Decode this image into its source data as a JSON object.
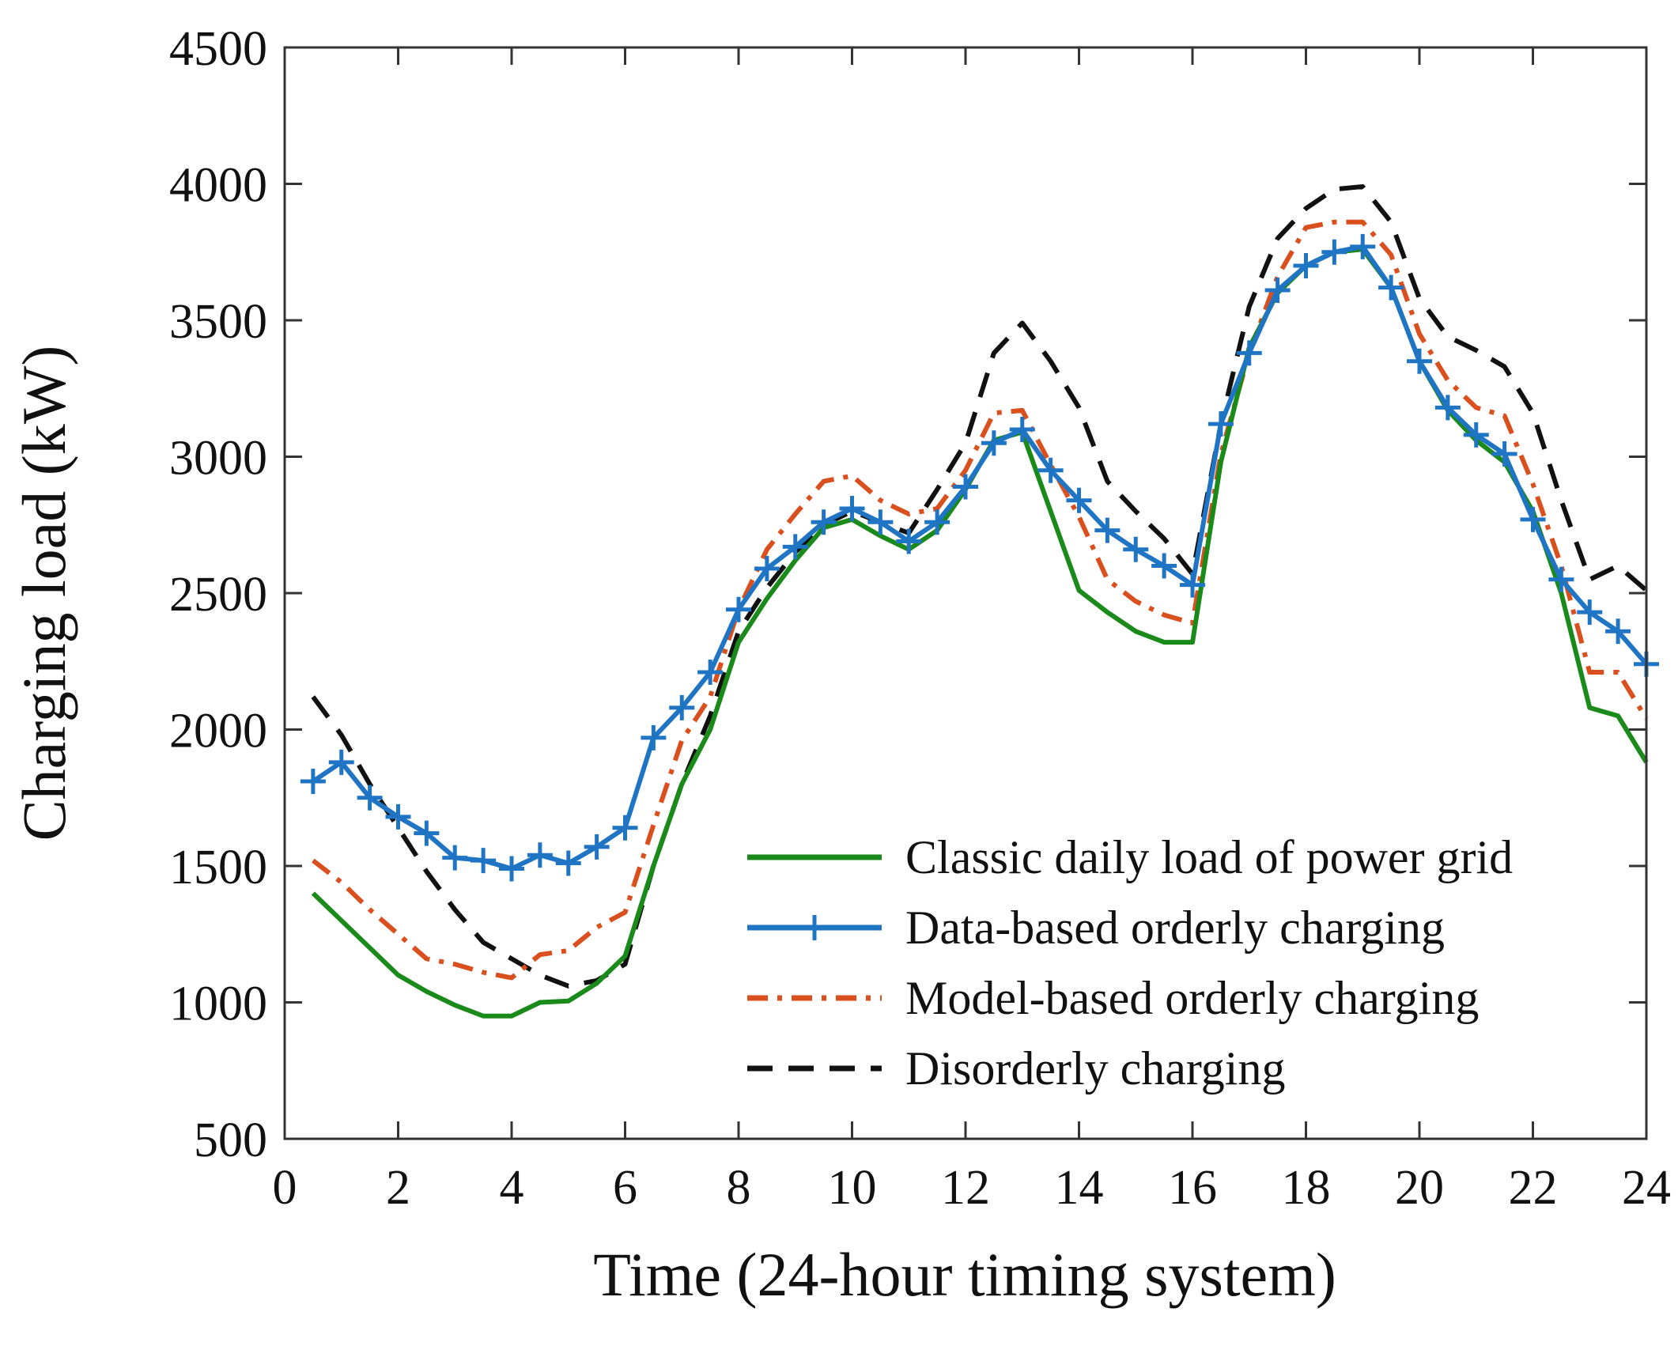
{
  "chart_data": {
    "type": "line",
    "title": "",
    "xlabel": "Time (24-hour timing system)",
    "ylabel": "Charging load (kW)",
    "xlim": [
      0,
      24
    ],
    "ylim": [
      500,
      4500
    ],
    "xticks": [
      0,
      2,
      4,
      6,
      8,
      10,
      12,
      14,
      16,
      18,
      20,
      22,
      24
    ],
    "xtick_labels": [
      "0",
      "2",
      "4",
      "6",
      "8",
      "10",
      "12",
      "14",
      "16",
      "18",
      "20",
      "22",
      "24"
    ],
    "yticks": [
      500,
      1000,
      1500,
      2000,
      2500,
      3000,
      3500,
      4000,
      4500
    ],
    "ytick_labels": [
      "500",
      "1000",
      "1500",
      "2000",
      "2500",
      "3000",
      "3500",
      "4000",
      "4500"
    ],
    "grid": false,
    "legend_position": "lower-right",
    "x": [
      0.5,
      1,
      1.5,
      2,
      2.5,
      3,
      3.5,
      4,
      4.5,
      5,
      5.5,
      6,
      6.5,
      7,
      7.5,
      8,
      8.5,
      9,
      9.5,
      10,
      10.5,
      11,
      11.5,
      12,
      12.5,
      13,
      13.5,
      14,
      14.5,
      15,
      15.5,
      16,
      16.5,
      17,
      17.5,
      18,
      18.5,
      19,
      19.5,
      20,
      20.5,
      21,
      21.5,
      22,
      22.5,
      23,
      23.5,
      24
    ],
    "series": [
      {
        "name": "Classic daily load of power grid",
        "color": "#1a8a1a",
        "style": "solid",
        "marker": "none",
        "values": [
          1400,
          1300,
          1200,
          1100,
          1040,
          990,
          950,
          950,
          1000,
          1005,
          1070,
          1170,
          1500,
          1800,
          2000,
          2320,
          2480,
          2620,
          2740,
          2770,
          2710,
          2660,
          2730,
          2880,
          3060,
          3090,
          2800,
          2510,
          2430,
          2360,
          2320,
          2320,
          2980,
          3400,
          3600,
          3700,
          3750,
          3760,
          3620,
          3350,
          3170,
          3060,
          2980,
          2800,
          2500,
          2080,
          2050,
          1880
        ]
      },
      {
        "name": "Data-based orderly charging",
        "color": "#1f74c4",
        "style": "solid",
        "marker": "plus",
        "values": [
          1810,
          1880,
          1750,
          1680,
          1620,
          1530,
          1520,
          1490,
          1540,
          1510,
          1570,
          1640,
          1970,
          2080,
          2210,
          2440,
          2590,
          2670,
          2760,
          2810,
          2760,
          2690,
          2760,
          2890,
          3050,
          3100,
          2950,
          2840,
          2730,
          2660,
          2600,
          2530,
          3120,
          3380,
          3610,
          3700,
          3750,
          3770,
          3620,
          3350,
          3180,
          3080,
          3010,
          2770,
          2550,
          2430,
          2360,
          2240
        ]
      },
      {
        "name": "Model-based orderly charging",
        "color": "#d9501e",
        "style": "dashdot",
        "marker": "none",
        "values": [
          1520,
          1440,
          1340,
          1250,
          1160,
          1140,
          1110,
          1090,
          1175,
          1190,
          1275,
          1330,
          1650,
          1960,
          2120,
          2440,
          2660,
          2790,
          2910,
          2930,
          2840,
          2790,
          2810,
          2950,
          3160,
          3170,
          2970,
          2780,
          2550,
          2470,
          2420,
          2390,
          3010,
          3380,
          3660,
          3840,
          3860,
          3860,
          3740,
          3450,
          3280,
          3180,
          3150,
          2900,
          2600,
          2210,
          2210,
          2040
        ]
      },
      {
        "name": "Disorderly charging",
        "color": "#111111",
        "style": "dashed",
        "marker": "none",
        "values": [
          2120,
          1980,
          1800,
          1640,
          1480,
          1340,
          1220,
          1160,
          1100,
          1060,
          1080,
          1140,
          1500,
          1800,
          2050,
          2360,
          2520,
          2650,
          2750,
          2800,
          2760,
          2720,
          2880,
          3050,
          3380,
          3490,
          3350,
          3180,
          2910,
          2800,
          2700,
          2570,
          3120,
          3550,
          3800,
          3910,
          3980,
          3990,
          3860,
          3580,
          3440,
          3390,
          3330,
          3160,
          2840,
          2550,
          2600,
          2510
        ]
      }
    ]
  }
}
